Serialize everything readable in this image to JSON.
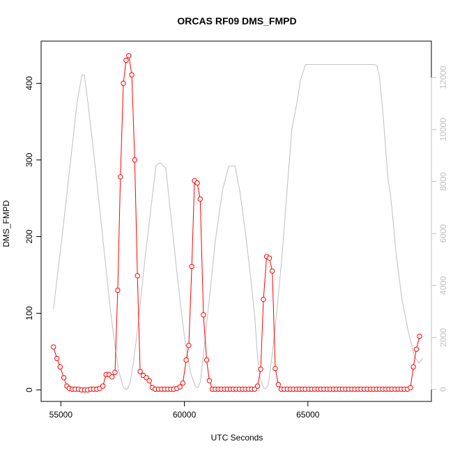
{
  "chart_data": {
    "type": "line",
    "title": "ORCAS RF09 DMS_FMPD",
    "xlabel": "UTC Seconds",
    "ylabel": "DMS_FMPD",
    "xlim": [
      54200,
      70000
    ],
    "ylim": [
      -15,
      455
    ],
    "y2lim": [
      -460,
      13400
    ],
    "x_ticks": [
      55000,
      60000,
      65000
    ],
    "y_ticks": [
      0,
      100,
      200,
      300,
      400
    ],
    "y2_ticks": [
      0,
      2000,
      4000,
      6000,
      8000,
      10000,
      12000
    ],
    "grid": false,
    "colors": {
      "primary": "#ff0000",
      "secondary": "#bebebe"
    },
    "series": [
      {
        "axis": "left",
        "style": "points-and-lines",
        "x": [
          54700,
          54840,
          54970,
          55120,
          55240,
          55340,
          55460,
          55580,
          55710,
          55840,
          55960,
          56080,
          56200,
          56330,
          56450,
          56570,
          56700,
          56830,
          56950,
          57070,
          57190,
          57300,
          57410,
          57530,
          57640,
          57750,
          57870,
          57990,
          58100,
          58210,
          58330,
          58460,
          58580,
          58700,
          58820,
          58950,
          59080,
          59200,
          59330,
          59450,
          59570,
          59700,
          59820,
          59940,
          60070,
          60180,
          60300,
          60410,
          60520,
          60640,
          60770,
          60900,
          61010,
          61130,
          61250,
          61370,
          61490,
          61620,
          61740,
          61860,
          61980,
          62100,
          62230,
          62350,
          62470,
          62600,
          62720,
          62840,
          62960,
          63090,
          63200,
          63330,
          63440,
          63560,
          63680,
          63800,
          63920,
          64040,
          64170,
          64290,
          64410,
          64540,
          64660,
          64780,
          64900,
          65030,
          65150,
          65280,
          65410,
          65530,
          65650,
          65780,
          65900,
          66030,
          66150,
          66280,
          66400,
          66530,
          66650,
          66780,
          66900,
          67030,
          67150,
          67280,
          67410,
          67530,
          67650,
          67780,
          67900,
          68030,
          68160,
          68280,
          68400,
          68530,
          68650,
          68780,
          68900,
          69030,
          69150,
          69270,
          69390,
          69520
        ],
        "y": [
          56,
          41,
          30,
          16,
          5,
          2,
          1,
          1,
          1,
          0,
          0,
          0,
          1,
          1,
          1,
          2,
          5,
          20,
          20,
          17,
          23,
          130,
          278,
          400,
          430,
          436,
          411,
          300,
          149,
          24,
          19,
          16,
          12,
          3,
          1,
          1,
          1,
          1,
          1,
          1,
          1,
          2,
          4,
          9,
          39,
          58,
          161,
          273,
          270,
          249,
          98,
          39,
          12,
          1,
          1,
          1,
          1,
          1,
          1,
          1,
          1,
          1,
          1,
          1,
          1,
          1,
          1,
          1,
          5,
          27,
          118,
          174,
          172,
          155,
          28,
          7,
          1,
          1,
          1,
          1,
          1,
          1,
          1,
          1,
          1,
          1,
          1,
          1,
          1,
          1,
          1,
          1,
          1,
          1,
          1,
          1,
          1,
          1,
          1,
          1,
          1,
          1,
          1,
          1,
          1,
          1,
          1,
          1,
          1,
          1,
          1,
          1,
          1,
          1,
          1,
          1,
          1,
          1,
          3,
          30,
          53,
          70
        ]
      },
      {
        "axis": "right",
        "style": "line",
        "x": [
          54700,
          55000,
          55300,
          55650,
          55850,
          55950,
          56100,
          56400,
          56700,
          57000,
          57200,
          57350,
          57500,
          57560,
          57620,
          57700,
          57800,
          57950,
          58150,
          58400,
          58650,
          58850,
          58950,
          59050,
          59250,
          59350,
          59500,
          59650,
          59850,
          60050,
          60250,
          60450,
          60550,
          60650,
          60800,
          61000,
          61250,
          61550,
          61800,
          61900,
          62050,
          62250,
          62450,
          62650,
          62850,
          62950,
          63050,
          63200,
          63300,
          63400,
          63550,
          63750,
          63950,
          64150,
          64350,
          64550,
          64700,
          64900,
          65100,
          65200,
          65500,
          66000,
          66500,
          67000,
          67500,
          67700,
          67800,
          67900,
          68050,
          68250,
          68300,
          68400,
          68550,
          68800,
          69050,
          69300,
          69500,
          69650
        ],
        "y": [
          3100,
          5500,
          8000,
          11000,
          12100,
          12100,
          11000,
          8500,
          5800,
          3100,
          1600,
          700,
          150,
          50,
          0,
          20,
          250,
          1100,
          2700,
          5000,
          7000,
          8600,
          8700,
          8700,
          8500,
          7600,
          6300,
          4900,
          3200,
          1700,
          650,
          100,
          80,
          300,
          1600,
          3400,
          5700,
          7700,
          8600,
          8600,
          8600,
          7600,
          6200,
          4600,
          2800,
          1400,
          500,
          50,
          30,
          200,
          1300,
          3100,
          5100,
          7600,
          10000,
          11000,
          11900,
          12500,
          12500,
          12500,
          12500,
          12500,
          12500,
          12500,
          12500,
          12500,
          12450,
          12000,
          10500,
          8000,
          7800,
          7000,
          5400,
          3500,
          2300,
          1300,
          1000,
          1200
        ]
      }
    ]
  }
}
